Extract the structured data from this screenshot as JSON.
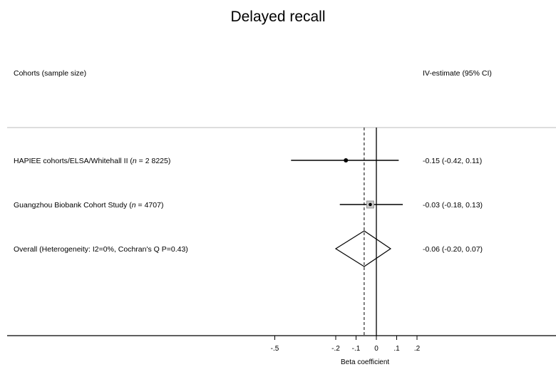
{
  "chart_data": {
    "type": "forest",
    "title": "Delayed recall",
    "left_header": "Cohorts (sample size)",
    "right_header": "IV-estimate (95% CI)",
    "xlabel": "Beta coefficient",
    "xlim": [
      -0.55,
      0.2
    ],
    "ticks": [
      {
        "value": -0.5,
        "label": "-.5"
      },
      {
        "value": -0.2,
        "label": "-.2"
      },
      {
        "value": -0.1,
        "label": "-.1"
      },
      {
        "value": 0,
        "label": "0"
      },
      {
        "value": 0.1,
        "label": ".1"
      },
      {
        "value": 0.2,
        "label": ".2"
      }
    ],
    "reference_line": 0,
    "overall_line": -0.06,
    "rows": [
      {
        "label_prefix": "HAPIEE cohorts/ELSA/Whitehall II (",
        "label_n": "n",
        "label_suffix": " = 2 8225)",
        "estimate": -0.15,
        "lower": -0.42,
        "upper": 0.11,
        "text": "-0.15 (-0.42, 0.11)",
        "marker": "point"
      },
      {
        "label_prefix": "Guangzhou Biobank Cohort Study (",
        "label_n": "n",
        "label_suffix": " = 4707)",
        "estimate": -0.03,
        "lower": -0.18,
        "upper": 0.13,
        "text": "-0.03 (-0.18, 0.13)",
        "marker": "square"
      },
      {
        "label_prefix": "Overall  (Heterogeneity: I2=0%, Cochran's Q P=0.43)",
        "label_n": "",
        "label_suffix": "",
        "estimate": -0.06,
        "lower": -0.2,
        "upper": 0.07,
        "text": "-0.06 (-0.20, 0.07)",
        "marker": "diamond"
      }
    ]
  }
}
